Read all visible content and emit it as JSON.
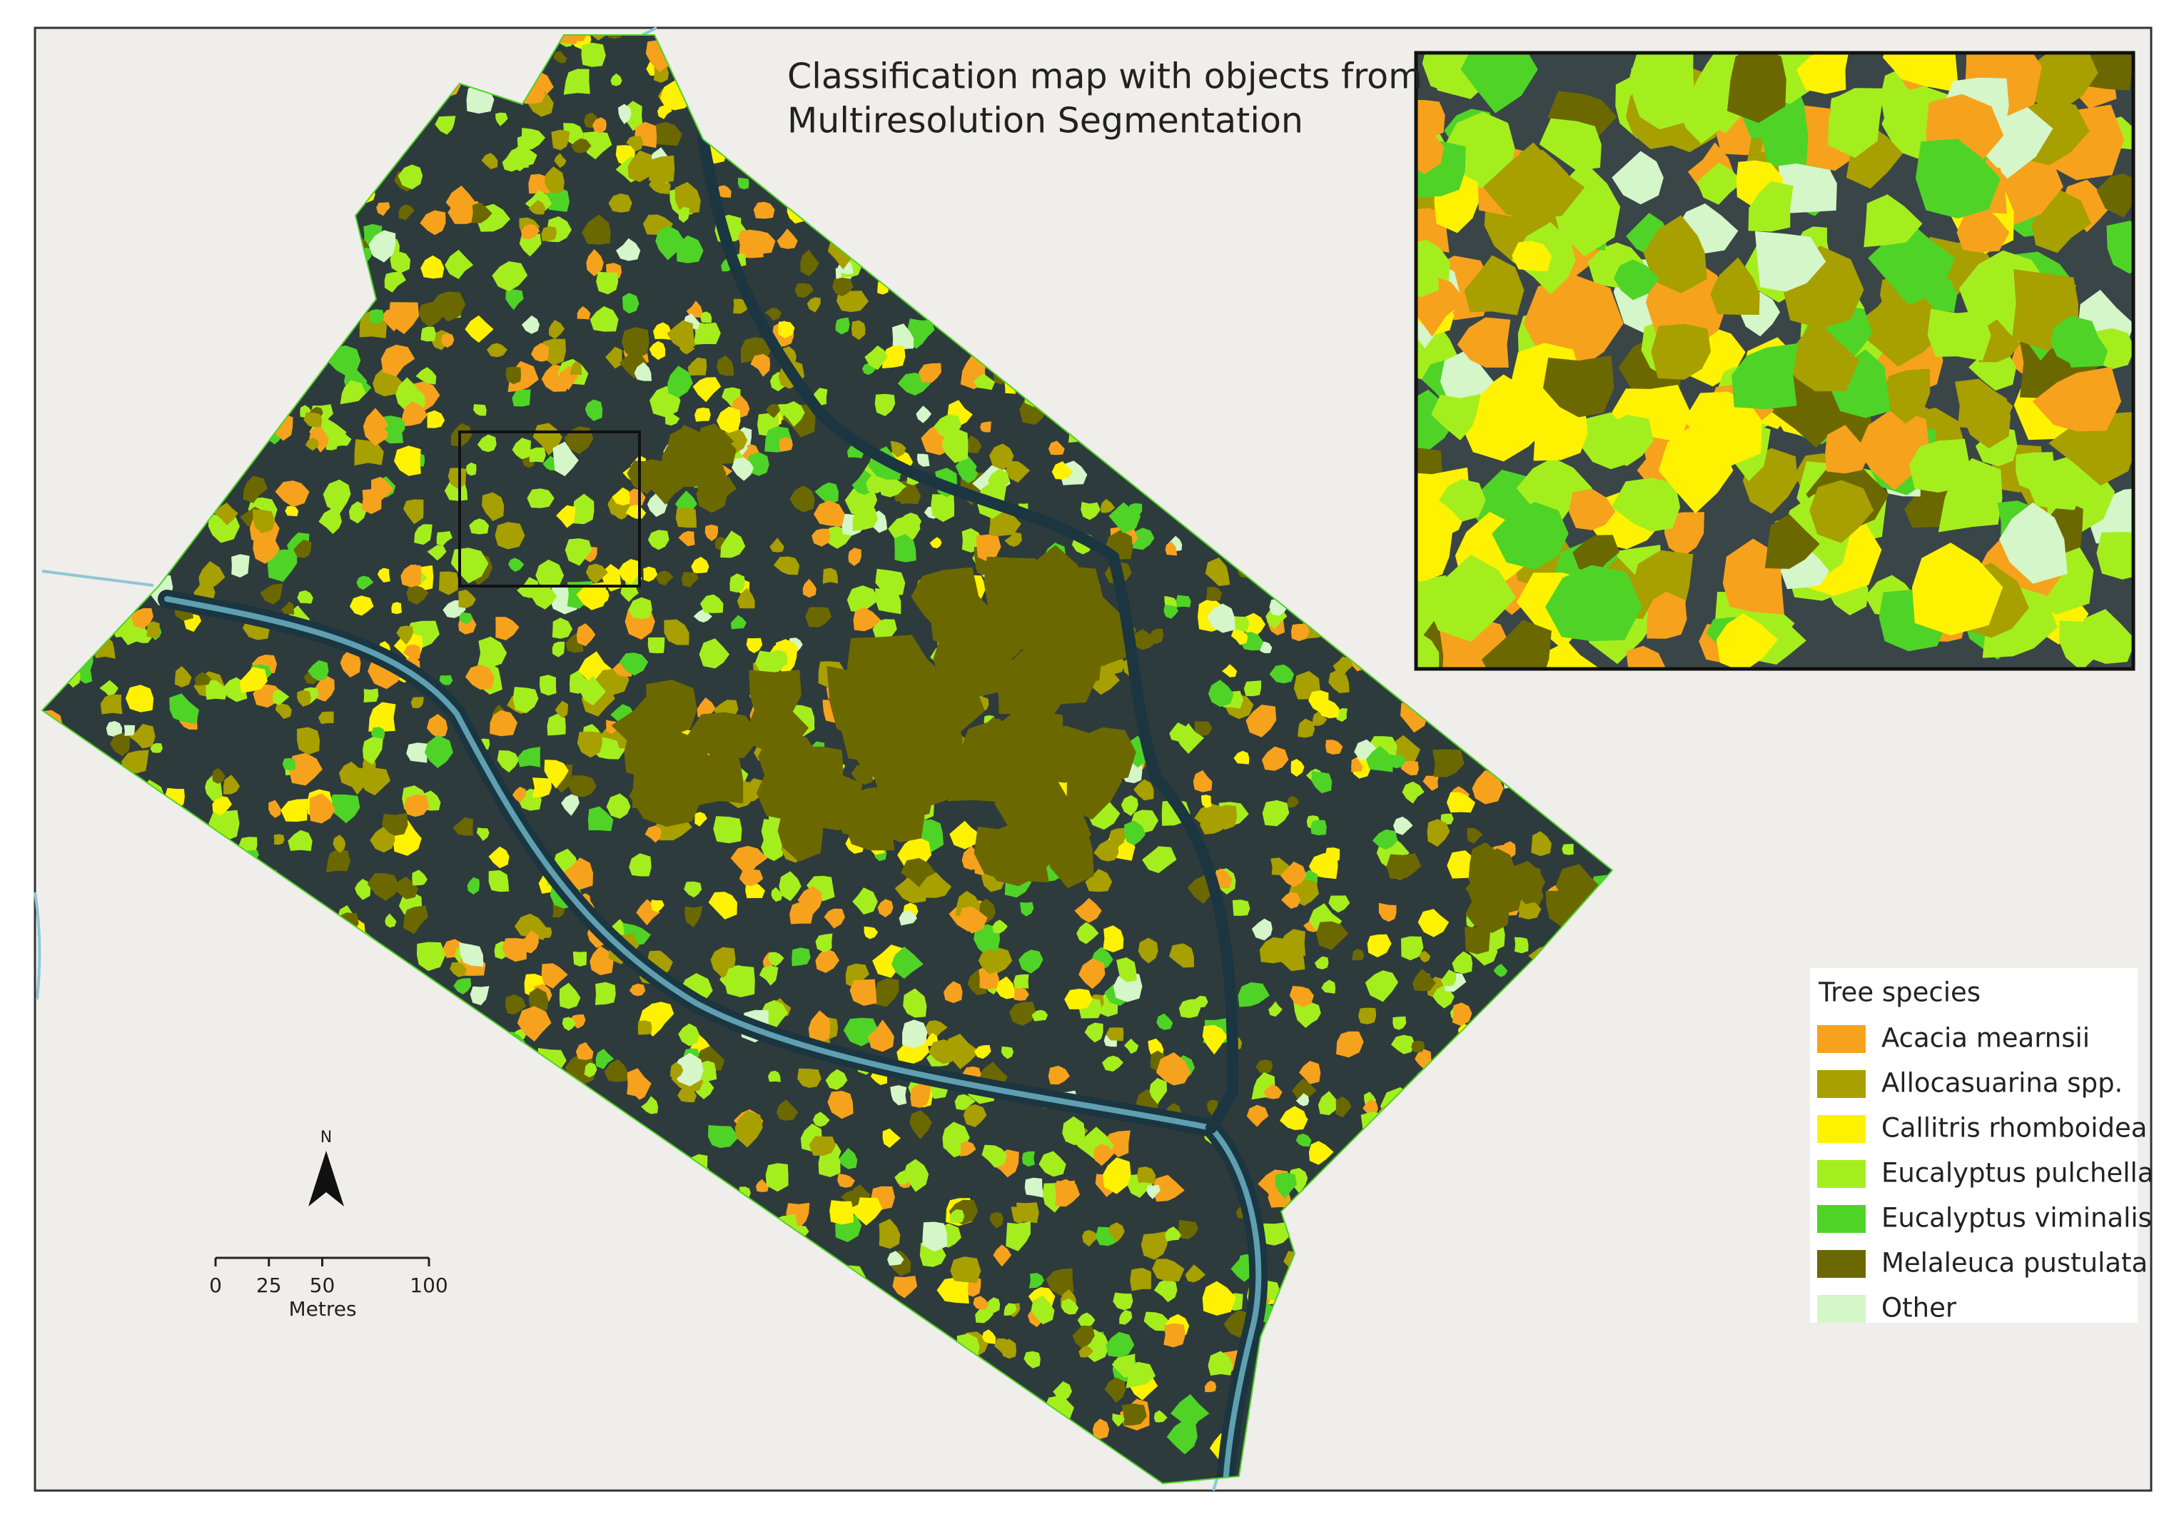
{
  "title_lines": [
    "Classification map with objects from",
    "Multiresolution Segmentation"
  ],
  "legend": {
    "title": "Tree species",
    "items": [
      {
        "label": "Acacia mearnsii",
        "color": "#f7a21c"
      },
      {
        "label": "Allocasuarina spp.",
        "color": "#a89f00"
      },
      {
        "label": "Callitris rhomboidea",
        "color": "#fff200"
      },
      {
        "label": "Eucalyptus pulchella",
        "color": "#a5ee1e"
      },
      {
        "label": "Eucalyptus viminalis",
        "color": "#4fd327"
      },
      {
        "label": "Melaleuca pustulata",
        "color": "#6c6800"
      },
      {
        "label": "Other",
        "color": "#d4f6c8"
      }
    ]
  },
  "north_arrow": "N",
  "scale_bar": {
    "ticks": [
      0,
      25,
      50,
      100
    ],
    "unit": "Metres"
  }
}
